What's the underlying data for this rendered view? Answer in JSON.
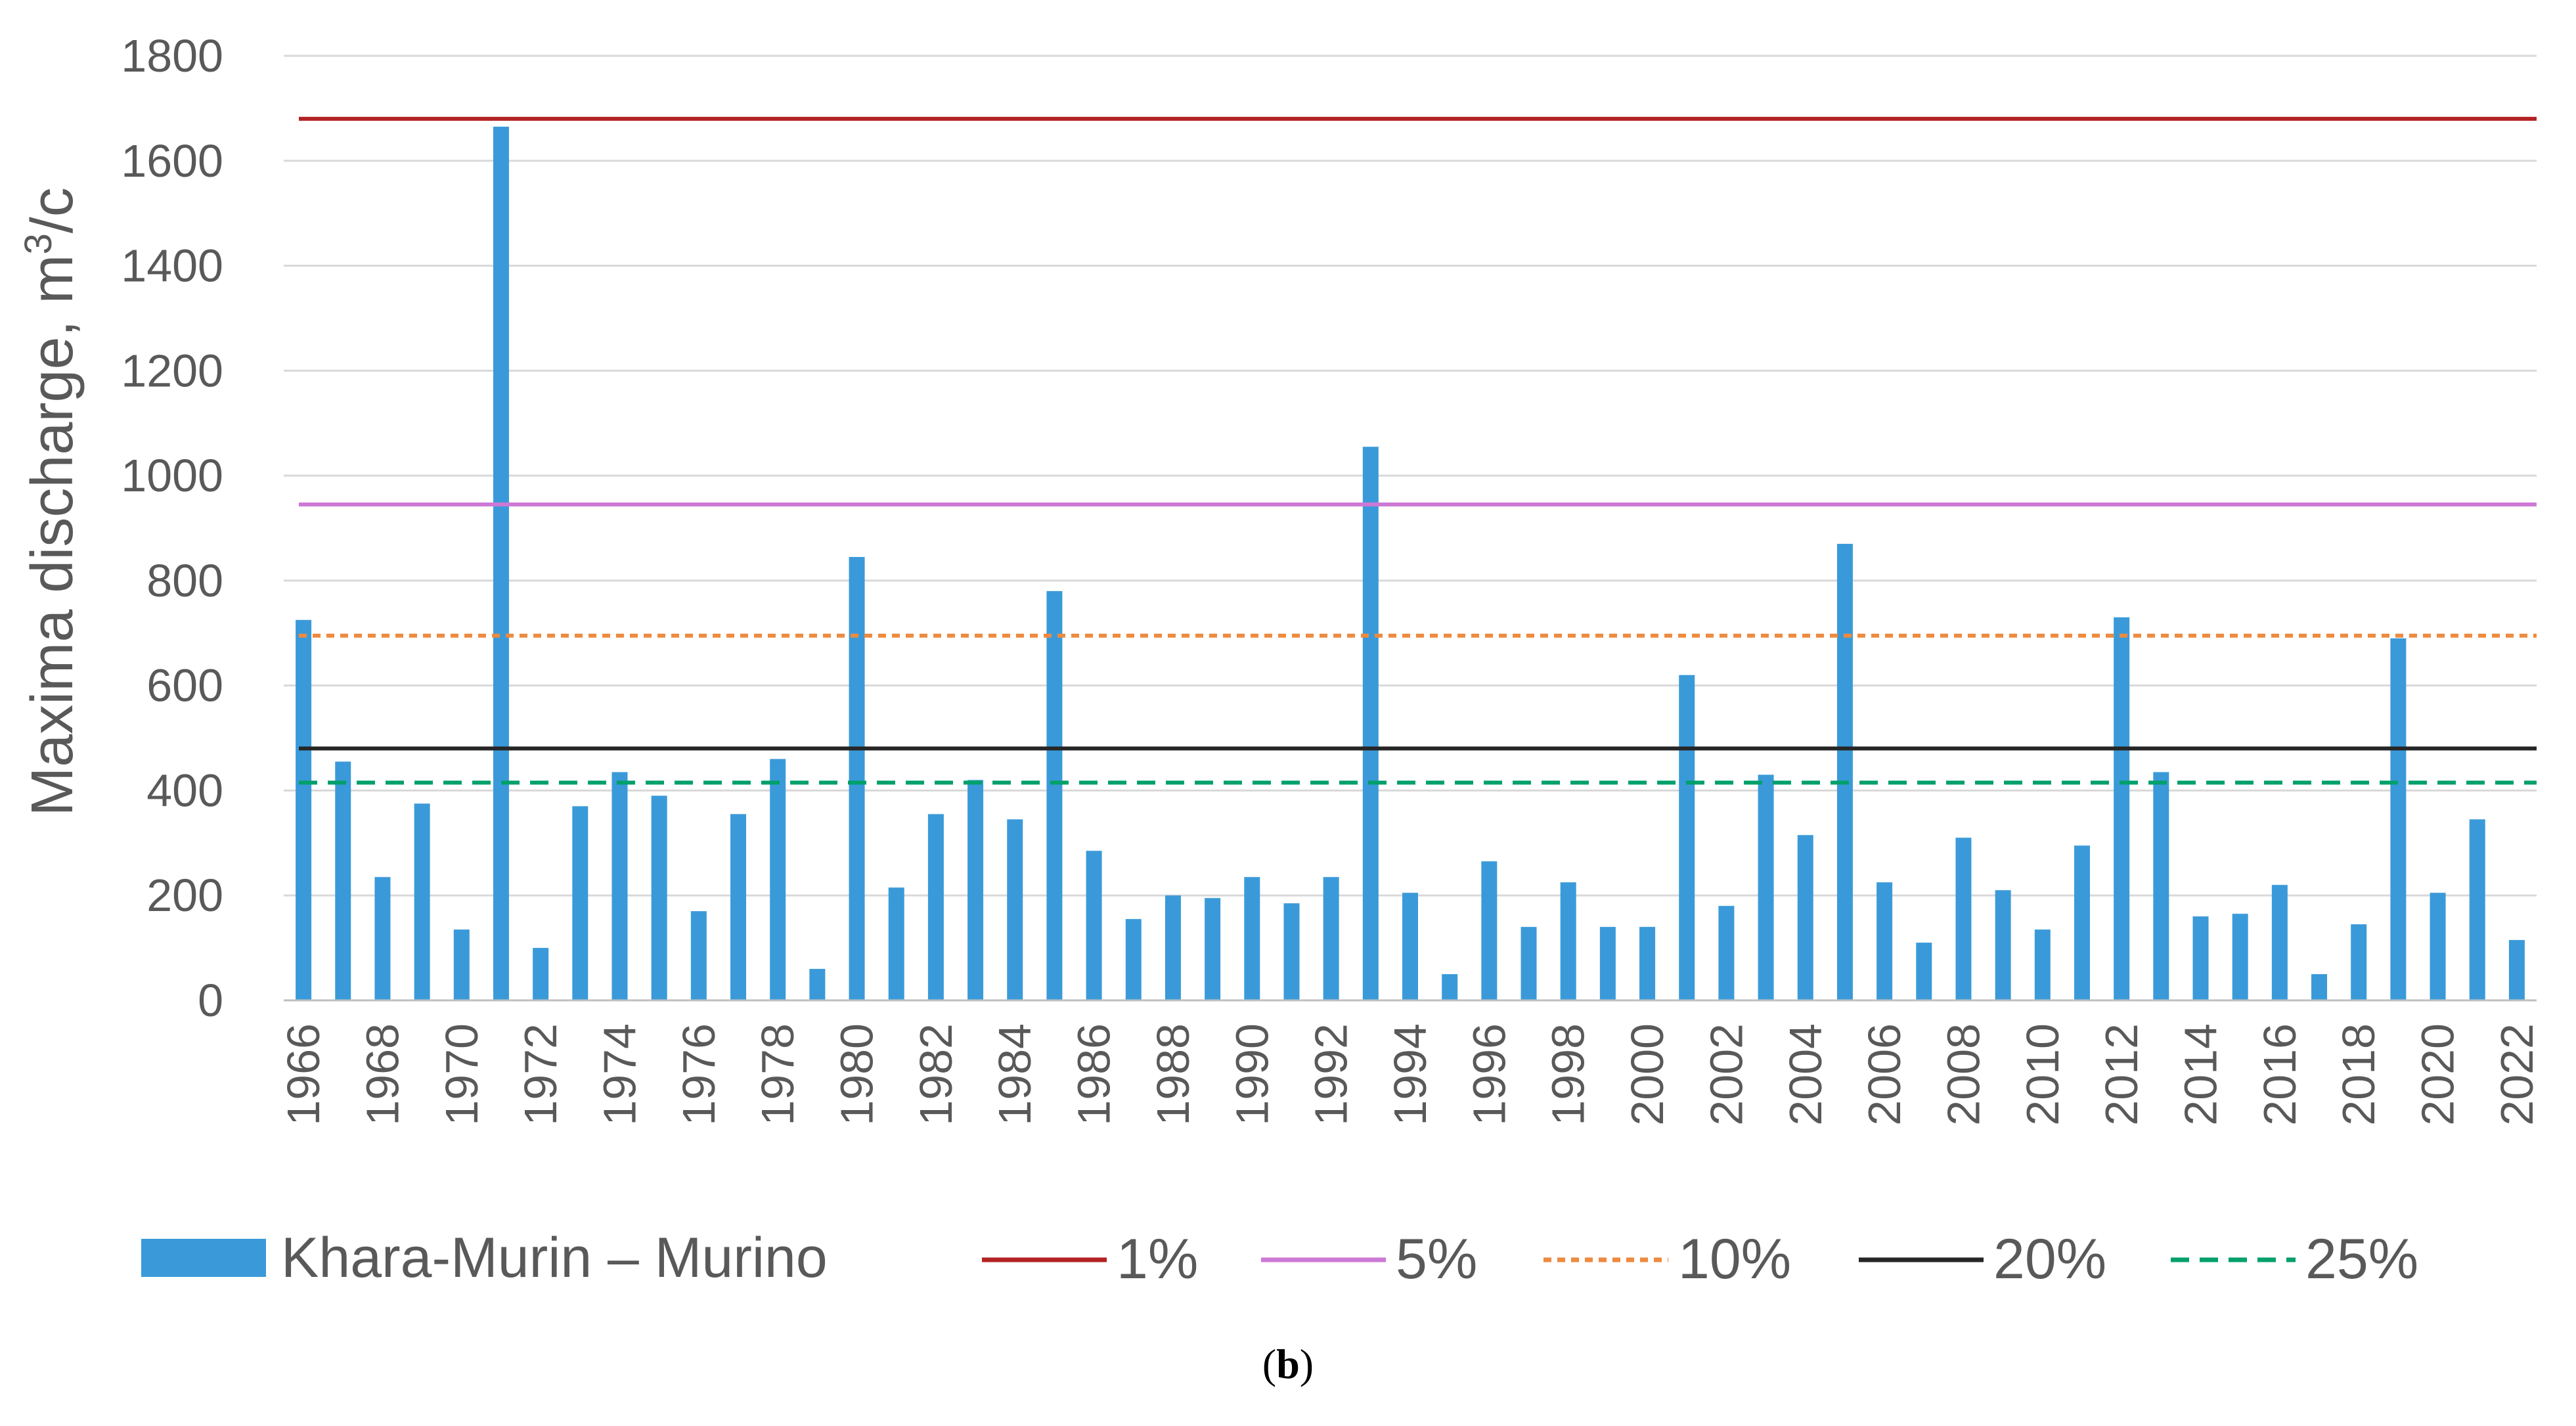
{
  "caption": {
    "open": "(",
    "letter": "b",
    "close": ")"
  },
  "chart_data": {
    "type": "bar",
    "ylabel_main": "Maxima discharge, m",
    "ylabel_sup": "3",
    "ylabel_tail": "/c",
    "ylim": [
      0,
      1800
    ],
    "yticks": [
      0,
      200,
      400,
      600,
      800,
      1000,
      1200,
      1400,
      1600,
      1800
    ],
    "grid": true,
    "legend_position": "bottom",
    "years": [
      1966,
      1967,
      1968,
      1969,
      1970,
      1971,
      1972,
      1973,
      1974,
      1975,
      1976,
      1977,
      1978,
      1979,
      1980,
      1981,
      1982,
      1983,
      1984,
      1985,
      1986,
      1987,
      1988,
      1989,
      1990,
      1991,
      1992,
      1993,
      1994,
      1995,
      1996,
      1997,
      1998,
      1999,
      2000,
      2001,
      2002,
      2003,
      2004,
      2005,
      2006,
      2007,
      2008,
      2009,
      2010,
      2011,
      2012,
      2013,
      2014,
      2015,
      2016,
      2017,
      2018,
      2019,
      2020,
      2021,
      2022
    ],
    "xtick_labels": [
      "1966",
      "1968",
      "1970",
      "1972",
      "1974",
      "1976",
      "1978",
      "1980",
      "1982",
      "1984",
      "1986",
      "1988",
      "1990",
      "1992",
      "1994",
      "1996",
      "1998",
      "2000",
      "2002",
      "2004",
      "2006",
      "2008",
      "2010",
      "2012",
      "2014",
      "2016",
      "2018",
      "2020",
      "2022"
    ],
    "series": [
      {
        "name": "Khara-Murin – Murino",
        "color": "#3a9ad9",
        "values": [
          725,
          455,
          235,
          375,
          135,
          1665,
          100,
          370,
          435,
          390,
          170,
          355,
          460,
          60,
          845,
          215,
          355,
          420,
          345,
          780,
          285,
          155,
          200,
          195,
          235,
          185,
          235,
          1055,
          205,
          50,
          265,
          140,
          225,
          140,
          140,
          620,
          180,
          430,
          315,
          870,
          225,
          110,
          310,
          210,
          135,
          295,
          730,
          435,
          160,
          165,
          220,
          50,
          145,
          690,
          205,
          345,
          115
        ]
      }
    ],
    "reference_lines": [
      {
        "name": "1%",
        "value": 1680,
        "color": "#b22222",
        "style": "solid"
      },
      {
        "name": "5%",
        "value": 945,
        "color": "#cc79d6",
        "style": "solid"
      },
      {
        "name": "10%",
        "value": 695,
        "color": "#ed8a3f",
        "style": "dotted"
      },
      {
        "name": "20%",
        "value": 480,
        "color": "#262626",
        "style": "solid"
      },
      {
        "name": "25%",
        "value": 415,
        "color": "#00a06a",
        "style": "dashed"
      }
    ]
  }
}
